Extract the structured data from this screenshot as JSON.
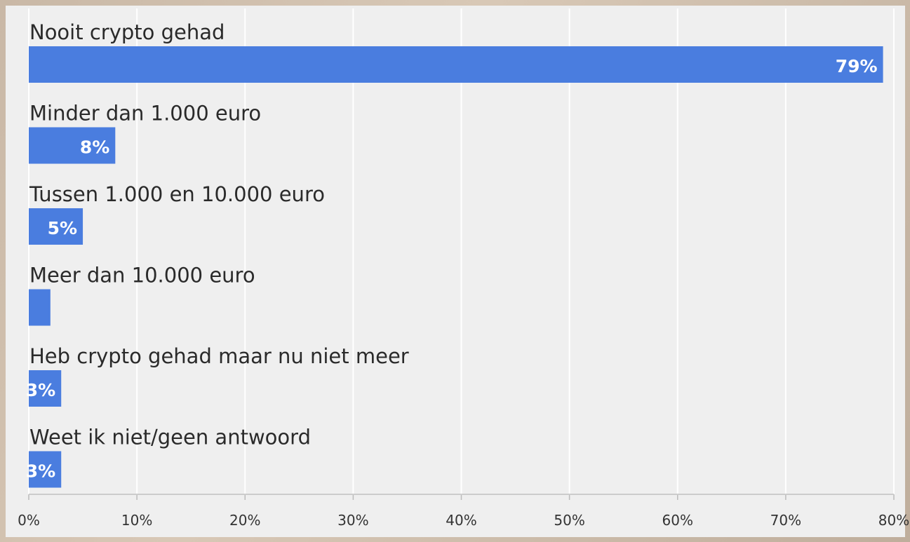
{
  "chart_data": {
    "type": "barh",
    "categories": [
      "Nooit crypto gehad",
      "Minder dan 1.000 euro",
      "Tussen 1.000 en 10.000 euro",
      "Meer dan 10.000 euro",
      "Heb crypto gehad maar nu niet meer",
      "Weet ik niet/geen antwoord"
    ],
    "values": [
      79,
      8,
      5,
      2,
      3,
      3
    ],
    "value_labels": [
      "79%",
      "8%",
      "5%",
      null,
      "3%",
      "3%"
    ],
    "color": "#4a7ddf",
    "xlim": [
      0,
      80
    ],
    "xticks": [
      {
        "value": 0,
        "label": "0%"
      },
      {
        "value": 10,
        "label": "10%"
      },
      {
        "value": 20,
        "label": "20%"
      },
      {
        "value": 30,
        "label": "30%"
      },
      {
        "value": 40,
        "label": "40%"
      },
      {
        "value": 50,
        "label": "50%"
      },
      {
        "value": 60,
        "label": "60%"
      },
      {
        "value": 70,
        "label": "70%"
      },
      {
        "value": 80,
        "label": "80%"
      }
    ],
    "grid": true
  }
}
